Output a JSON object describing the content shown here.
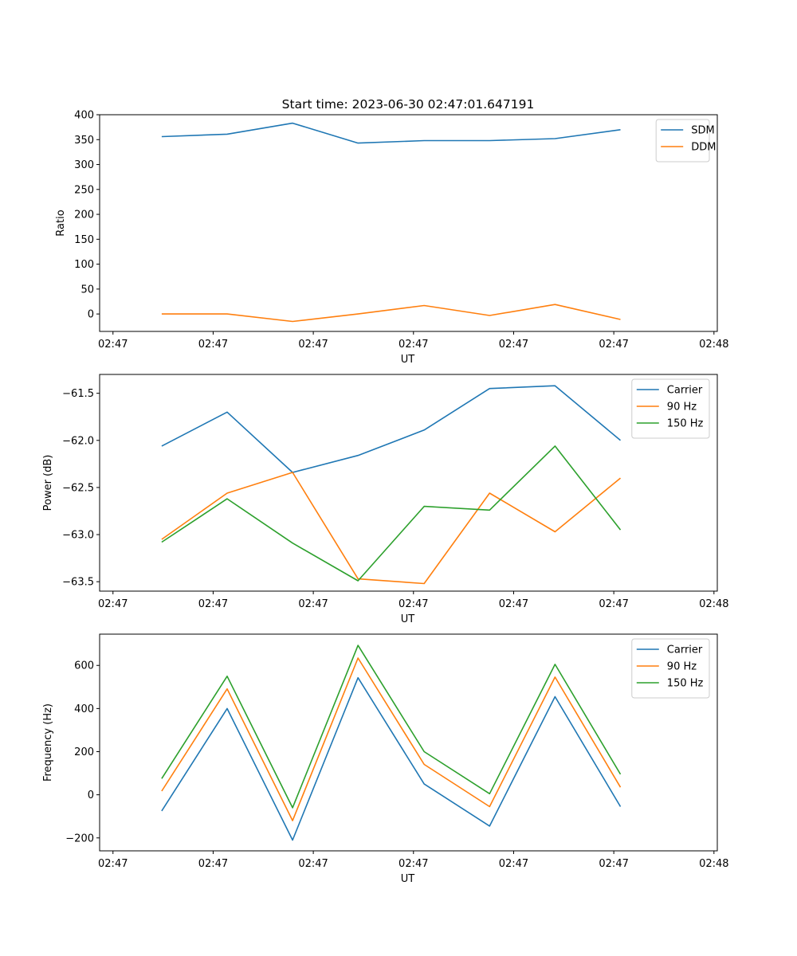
{
  "title": "Start time: 2023-06-30 02:47:01.647191",
  "chart_data": [
    {
      "type": "line",
      "ylabel": "Ratio",
      "xlabel": "UT",
      "xlim": [
        0,
        8.65
      ],
      "x_tick_positions": [
        0,
        1.5,
        3,
        4.5,
        6,
        7.5,
        9
      ],
      "x_tick_labels": [
        "02:47",
        "02:47",
        "02:47",
        "02:47",
        "02:47",
        "02:47",
        "02:48"
      ],
      "ylim": [
        -35,
        400
      ],
      "y_ticks": [
        0,
        50,
        100,
        150,
        200,
        250,
        300,
        350,
        400
      ],
      "y_tick_labels": [
        "0",
        "50",
        "100",
        "150",
        "200",
        "250",
        "300",
        "350",
        "400"
      ],
      "legend_location": "upper right",
      "x": [
        0.73,
        1.71,
        2.69,
        3.67,
        4.66,
        5.64,
        6.62,
        7.6
      ],
      "series": [
        {
          "name": "SDM",
          "color": "#1f77b4",
          "values": [
            356,
            361,
            383,
            343,
            348,
            348,
            352,
            370
          ]
        },
        {
          "name": "DDM",
          "color": "#ff7f0e",
          "values": [
            0,
            0,
            -15,
            0,
            17,
            -3,
            19,
            -11
          ]
        }
      ]
    },
    {
      "type": "line",
      "ylabel": "Power (dB)",
      "xlabel": "UT",
      "xlim": [
        0,
        8.65
      ],
      "x_tick_positions": [
        0,
        1.5,
        3,
        4.5,
        6,
        7.5,
        9
      ],
      "x_tick_labels": [
        "02:47",
        "02:47",
        "02:47",
        "02:47",
        "02:47",
        "02:47",
        "02:48"
      ],
      "ylim": [
        -63.6,
        -61.3
      ],
      "y_ticks": [
        -63.5,
        -63.0,
        -62.5,
        -62.0,
        -61.5
      ],
      "y_tick_labels": [
        "−63.5",
        "−63.0",
        "−62.5",
        "−62.0",
        "−61.5"
      ],
      "legend_location": "upper right",
      "x": [
        0.73,
        1.71,
        2.69,
        3.67,
        4.66,
        5.64,
        6.62,
        7.6
      ],
      "series": [
        {
          "name": "Carrier",
          "color": "#1f77b4",
          "values": [
            -62.06,
            -61.7,
            -62.34,
            -62.16,
            -61.89,
            -61.45,
            -61.42,
            -62.0
          ]
        },
        {
          "name": "90 Hz",
          "color": "#ff7f0e",
          "values": [
            -63.05,
            -62.56,
            -62.34,
            -63.47,
            -63.52,
            -62.56,
            -62.97,
            -62.4
          ]
        },
        {
          "name": "150 Hz",
          "color": "#2ca02c",
          "values": [
            -63.08,
            -62.62,
            -63.09,
            -63.49,
            -62.7,
            -62.74,
            -62.06,
            -62.95
          ]
        }
      ]
    },
    {
      "type": "line",
      "ylabel": "Frequency (Hz)",
      "xlabel": "UT",
      "xlim": [
        0,
        8.65
      ],
      "x_tick_positions": [
        0,
        1.5,
        3,
        4.5,
        6,
        7.5,
        9
      ],
      "x_tick_labels": [
        "02:47",
        "02:47",
        "02:47",
        "02:47",
        "02:47",
        "02:47",
        "02:48"
      ],
      "ylim": [
        -260,
        745
      ],
      "y_ticks": [
        -200,
        0,
        200,
        400,
        600
      ],
      "y_tick_labels": [
        "−200",
        "0",
        "200",
        "400",
        "600"
      ],
      "legend_location": "upper right",
      "x": [
        0.73,
        1.71,
        2.69,
        3.67,
        4.66,
        5.64,
        6.62,
        7.6
      ],
      "series": [
        {
          "name": "Carrier",
          "color": "#1f77b4",
          "values": [
            -75,
            400,
            -210,
            543,
            50,
            -145,
            455,
            -55
          ]
        },
        {
          "name": "90 Hz",
          "color": "#ff7f0e",
          "values": [
            17,
            491,
            -120,
            634,
            141,
            -55,
            546,
            35
          ]
        },
        {
          "name": "150 Hz",
          "color": "#2ca02c",
          "values": [
            75,
            550,
            -60,
            693,
            200,
            5,
            605,
            95
          ]
        }
      ]
    }
  ]
}
